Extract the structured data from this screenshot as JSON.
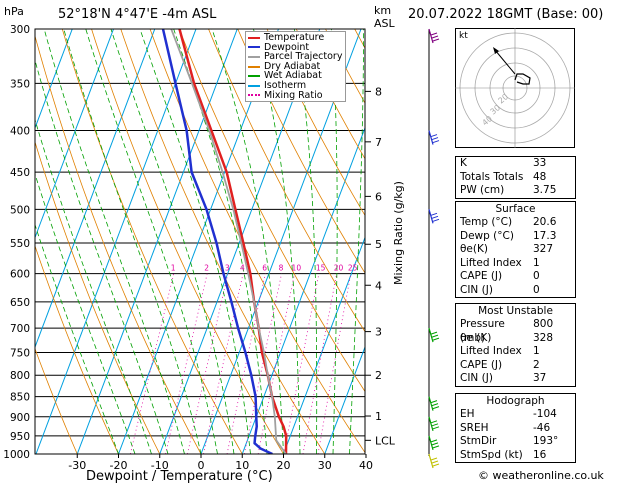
{
  "header": {
    "hpa_label": "hPa",
    "location": "52°18'N  4°47'E  -4m  ASL",
    "km_label": "km",
    "asl_label": "ASL",
    "datetime": "20.07.2022  18GMT  (Base: 00)"
  },
  "legend": [
    {
      "label": "Temperature",
      "color": "#e02020"
    },
    {
      "label": "Dewpoint",
      "color": "#2030d0"
    },
    {
      "label": "Parcel Trajectory",
      "color": "#a0a0a0"
    },
    {
      "label": "Dry Adiabat",
      "color": "#e08000"
    },
    {
      "label": "Wet Adiabat",
      "color": "#00a000"
    },
    {
      "label": "Isotherm",
      "color": "#00a0e0"
    },
    {
      "label": "Mixing Ratio",
      "color": "#e000a0"
    }
  ],
  "chart_data": {
    "type": "line",
    "title": "52°18'N  4°47'E  -4m  ASL",
    "xlabel": "Dewpoint / Temperature (°C)",
    "ylabel": "hPa",
    "right_ylabel": "Mixing Ratio (g/kg)",
    "xlim": [
      -35,
      40
    ],
    "ylim": [
      1000,
      300
    ],
    "y_scale": "log",
    "x_ticks": [
      "-30",
      "-20",
      "-10",
      "0",
      "10",
      "20",
      "30",
      "40"
    ],
    "pressure_ticks": [
      "300",
      "350",
      "400",
      "450",
      "500",
      "550",
      "600",
      "650",
      "700",
      "750",
      "800",
      "850",
      "900",
      "950",
      "1000"
    ],
    "km_ticks": [
      {
        "label": "8",
        "p": 358
      },
      {
        "label": "7",
        "p": 413
      },
      {
        "label": "6",
        "p": 482
      },
      {
        "label": "5",
        "p": 552
      },
      {
        "label": "4",
        "p": 620
      },
      {
        "label": "3",
        "p": 707
      },
      {
        "label": "2",
        "p": 800
      },
      {
        "label": "1",
        "p": 898
      },
      {
        "label": "LCL",
        "p": 962
      }
    ],
    "mixing_ratio_labels": [
      "1",
      "2",
      "3",
      "4",
      "6",
      "8",
      "10",
      "15",
      "20",
      "25"
    ],
    "series": [
      {
        "name": "Temperature",
        "color": "#e02020",
        "p": [
          1000,
          950,
          925,
          900,
          850,
          800,
          750,
          700,
          650,
          600,
          550,
          500,
          450,
          400,
          350,
          300
        ],
        "t": [
          20.6,
          19,
          17.5,
          15.5,
          12,
          9,
          5.5,
          2.5,
          -1,
          -4.5,
          -9,
          -14,
          -19.5,
          -27,
          -35.5,
          -44
        ]
      },
      {
        "name": "Dewpoint",
        "color": "#2030d0",
        "p": [
          1000,
          985,
          970,
          950,
          925,
          900,
          850,
          800,
          750,
          700,
          650,
          600,
          550,
          500,
          450,
          400,
          350,
          300
        ],
        "t": [
          17.3,
          14,
          12,
          11.5,
          11,
          10,
          8,
          5,
          1.5,
          -2.5,
          -6.5,
          -11,
          -15.5,
          -21,
          -28,
          -33,
          -40,
          -48
        ]
      },
      {
        "name": "Parcel Trajectory",
        "color": "#a0a0a0",
        "p": [
          1000,
          962,
          900,
          850,
          800,
          750,
          700,
          650,
          600,
          550,
          500,
          450,
          400,
          350,
          300
        ],
        "t": [
          20.6,
          17,
          14.5,
          12,
          9,
          6,
          2.5,
          -1,
          -5,
          -9.5,
          -14.5,
          -20.5,
          -27.5,
          -36,
          -46
        ]
      }
    ]
  },
  "hodograph": {
    "label": "kt",
    "ring_labels": [
      "40",
      "30",
      "20"
    ]
  },
  "indices": {
    "top": [
      {
        "label": "K",
        "value": "33"
      },
      {
        "label": "Totals Totals",
        "value": "48"
      },
      {
        "label": "PW (cm)",
        "value": "3.75"
      }
    ],
    "surface": {
      "title": "Surface",
      "rows": [
        {
          "label": "Temp (°C)",
          "value": "20.6"
        },
        {
          "label": "Dewp (°C)",
          "value": "17.3"
        },
        {
          "label": "θe(K)",
          "value": "327"
        },
        {
          "label": "Lifted Index",
          "value": "1"
        },
        {
          "label": "CAPE (J)",
          "value": "0"
        },
        {
          "label": "CIN (J)",
          "value": "0"
        }
      ]
    },
    "unstable": {
      "title": "Most Unstable",
      "rows": [
        {
          "label": "Pressure (mb)",
          "value": "800"
        },
        {
          "label": "θe (K)",
          "value": "328"
        },
        {
          "label": "Lifted Index",
          "value": "1"
        },
        {
          "label": "CAPE (J)",
          "value": "2"
        },
        {
          "label": "CIN (J)",
          "value": "37"
        }
      ]
    },
    "hodo": {
      "title": "Hodograph",
      "rows": [
        {
          "label": "EH",
          "value": "-104"
        },
        {
          "label": "SREH",
          "value": "-46"
        },
        {
          "label": "StmDir",
          "value": "193°"
        },
        {
          "label": "StmSpd (kt)",
          "value": "16"
        }
      ]
    }
  },
  "footer": "© weatheronline.co.uk"
}
